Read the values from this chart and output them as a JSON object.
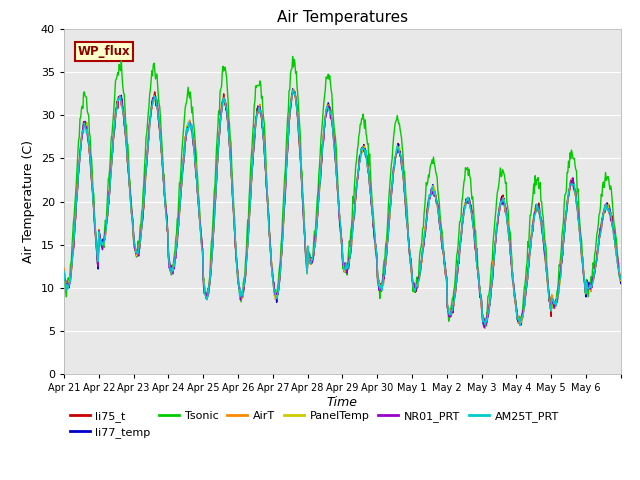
{
  "title": "Air Temperatures",
  "xlabel": "Time",
  "ylabel": "Air Temperature (C)",
  "ylim": [
    0,
    40
  ],
  "yticks": [
    0,
    5,
    10,
    15,
    20,
    25,
    30,
    35,
    40
  ],
  "date_labels": [
    "Apr 21",
    "Apr 22",
    "Apr 23",
    "Apr 24",
    "Apr 25",
    "Apr 26",
    "Apr 27",
    "Apr 28",
    "Apr 29",
    "Apr 30",
    "May 1",
    "May 2",
    "May 3",
    "May 4",
    "May 5",
    "May 6"
  ],
  "wp_flux_label": "WP_flux",
  "wp_flux_box_facecolor": "#ffffcc",
  "wp_flux_box_edgecolor": "#aa0000",
  "wp_flux_text_color": "#880000",
  "plot_bg_color": "#e8e8e8",
  "legend_entries": [
    "li75_t",
    "li77_temp",
    "Tsonic",
    "AirT",
    "PanelTemp",
    "NR01_PRT",
    "AM25T_PRT"
  ],
  "line_colors": [
    "#cc0000",
    "#0000cc",
    "#00cc00",
    "#ff8800",
    "#cccc00",
    "#9900cc",
    "#00cccc"
  ],
  "line_width": 1.0,
  "title_fontsize": 11,
  "axis_fontsize": 9,
  "tick_fontsize": 8,
  "legend_fontsize": 8,
  "day_max": [
    30,
    33,
    33,
    30,
    33,
    32,
    34,
    32,
    27,
    27,
    22,
    21,
    21,
    20,
    23,
    20
  ],
  "day_min": [
    10,
    15,
    14,
    12,
    9,
    9,
    9,
    13,
    12,
    10,
    10,
    7,
    6,
    6,
    8,
    10
  ],
  "n_days": 16
}
